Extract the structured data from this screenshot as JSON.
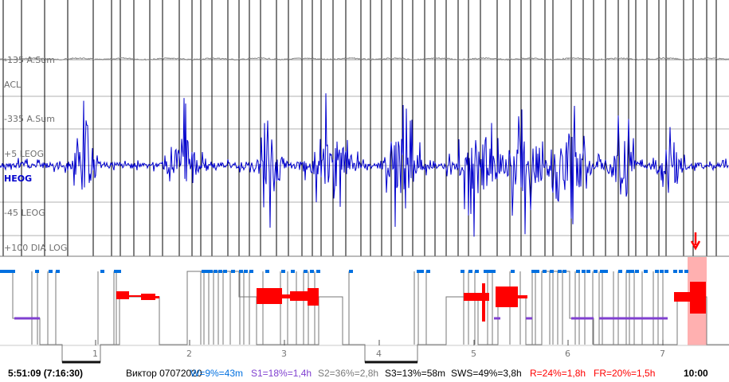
{
  "channels": {
    "a_sum_top": "-135 A.Sum",
    "acl": "ACL",
    "a_sum_mid": "-335 A.Sum",
    "leog_pos": "+5 LEOG",
    "heog": "HEOG",
    "leog_neg": "-45 LEOG",
    "dia": "+100 DIA LOG"
  },
  "hypnogram": {
    "hour_labels": [
      "1",
      "2",
      "3",
      "4",
      "5",
      "6",
      "7"
    ],
    "marker": "↓"
  },
  "status": {
    "start_time": "5:51:09 (7:16:30)",
    "record": "Виктор 07072020",
    "w": "W=9%=43m",
    "s1": "S1=18%=1,4h",
    "s2": "S2=36%=2,8h",
    "s3": "S3=13%=58m",
    "sws": "SWS=49%=3,8h",
    "r": "R=24%=1,8h",
    "fr": "FR=20%=1,5h",
    "cursor_time": "10:00"
  },
  "colors": {
    "signal": "#0000cc",
    "label": "#6e6e6e",
    "wake": "#0070e0",
    "s1": "#8040d0",
    "rem": "#ff0000",
    "cursor_band": "#ffb0b0",
    "s2_text": "#7a7a7a"
  }
}
